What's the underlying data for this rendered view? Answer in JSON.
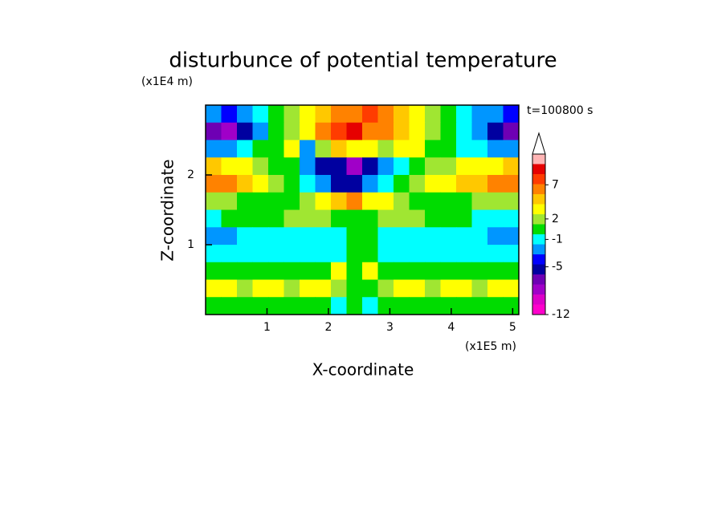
{
  "chart_data": {
    "type": "contour",
    "title": "disturbunce of potential temperature",
    "y_unit": "(x1E4 m)",
    "x_unit": "(x1E5 m)",
    "annotation": "t=100800 s",
    "xlabel": "X-coordinate",
    "ylabel": "Z-coordinate",
    "xlim": [
      0,
      5.1
    ],
    "ylim": [
      0,
      3.0
    ],
    "xticks": [
      1,
      2,
      3,
      4,
      5
    ],
    "yticks": [
      1,
      2
    ],
    "clim": [
      -12,
      11.5
    ],
    "cticks": [
      -12,
      -5,
      -1,
      2,
      7
    ],
    "colors": [
      "#ff00cc",
      "#dc00c8",
      "#a000c8",
      "#6e00b4",
      "#0000a0",
      "#0000ff",
      "#0096ff",
      "#00ffff",
      "#00dc00",
      "#a0e632",
      "#ffff00",
      "#ffc800",
      "#ff8200",
      "#ff3c00",
      "#e60000",
      "#ffb4b4"
    ],
    "z": [
      [
        -3,
        -4,
        -3,
        -1,
        0,
        2,
        4,
        5,
        6,
        7,
        8,
        6,
        5,
        3,
        2,
        0,
        -1,
        -2,
        -3,
        -4
      ],
      [
        -7,
        -8,
        -6,
        -2,
        0,
        2,
        4,
        6,
        8,
        9,
        7,
        6,
        5,
        3,
        2,
        0,
        -1,
        -3,
        -6,
        -7
      ],
      [
        -3,
        -3,
        -1,
        0,
        1,
        3,
        -3,
        2,
        5,
        4,
        3,
        2,
        4,
        3,
        1,
        0,
        -1,
        -1,
        -2,
        -2
      ],
      [
        5,
        4,
        3,
        2,
        1,
        0,
        -2,
        -5,
        -6,
        -8,
        -6,
        -3,
        -1,
        0,
        2,
        2,
        3,
        3,
        4,
        5
      ],
      [
        7,
        6,
        5,
        4,
        2,
        1,
        -1,
        -3,
        -5,
        -5,
        -3,
        -1,
        1,
        2,
        3,
        4,
        5,
        5,
        6,
        7
      ],
      [
        2,
        2,
        1,
        1,
        0,
        1,
        2,
        4,
        5,
        6,
        4,
        3,
        2,
        1,
        1,
        1,
        1,
        2,
        2,
        2
      ],
      [
        -1,
        0,
        0,
        0,
        1,
        2,
        2,
        2,
        1,
        0,
        1,
        2,
        2,
        2,
        1,
        0,
        0,
        -1,
        -1,
        -1
      ],
      [
        -2,
        -2,
        -1,
        -1,
        -1,
        -1,
        -1,
        -1,
        -1,
        0,
        0,
        -1,
        -1,
        -1,
        -1,
        -1,
        -1,
        -1,
        -2,
        -2
      ],
      [
        -1,
        -1,
        -1,
        -1,
        -1,
        -1,
        -1,
        -1,
        -1,
        0,
        0,
        -1,
        -1,
        -1,
        -1,
        -1,
        -1,
        -1,
        -1,
        -1
      ],
      [
        1,
        1,
        0,
        0,
        0,
        0,
        1,
        1,
        3,
        1,
        3,
        1,
        1,
        1,
        0,
        0,
        0,
        0,
        1,
        1
      ],
      [
        3,
        3,
        2,
        3,
        3,
        2,
        3,
        3,
        2,
        1,
        1,
        2,
        3,
        3,
        2,
        3,
        3,
        2,
        3,
        3
      ],
      [
        1,
        0,
        1,
        0,
        1,
        0,
        1,
        0,
        -1,
        0,
        -1,
        0,
        1,
        0,
        1,
        0,
        1,
        0,
        1,
        0
      ]
    ]
  }
}
